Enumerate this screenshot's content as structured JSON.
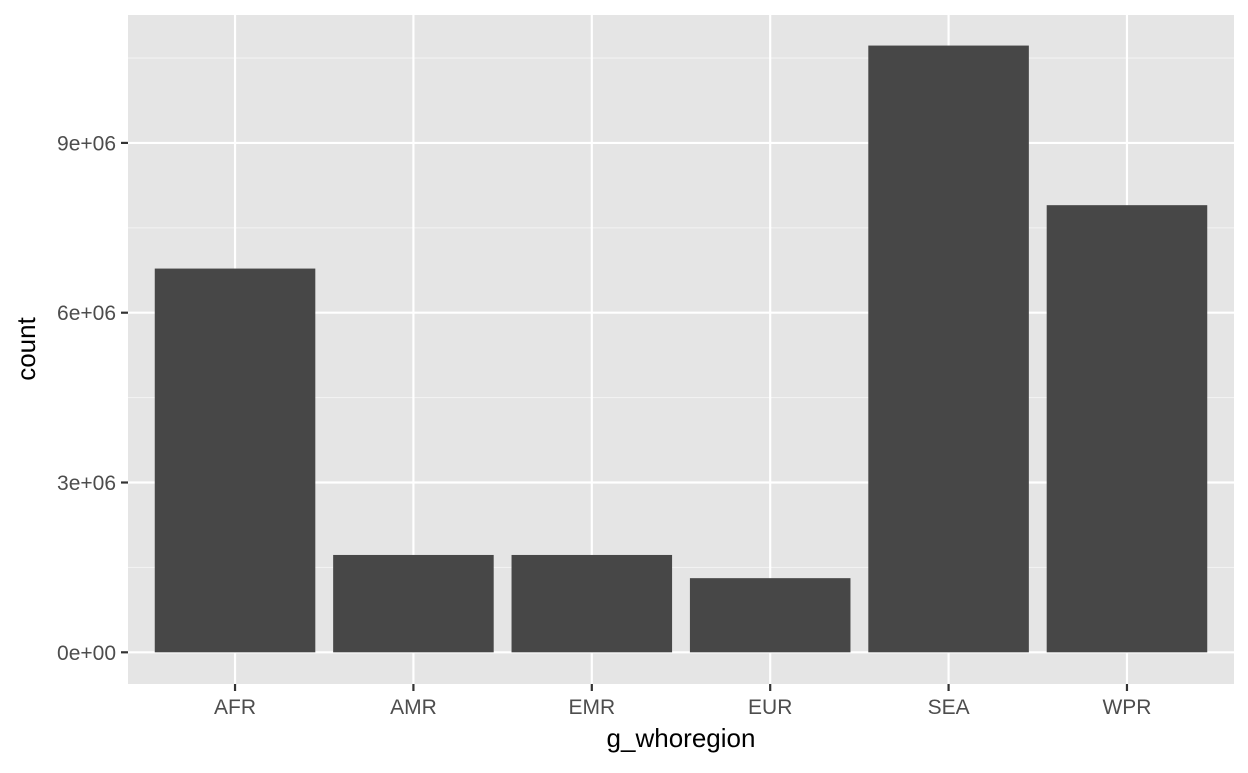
{
  "chart_data": {
    "type": "bar",
    "title": "",
    "xlabel": "g_whoregion",
    "ylabel": "count",
    "categories": [
      "AFR",
      "AMR",
      "EMR",
      "EUR",
      "SEA",
      "WPR"
    ],
    "values": [
      6780000,
      1720000,
      1720000,
      1310000,
      10720000,
      7900000
    ],
    "ylim": [
      -560000,
      11260000
    ],
    "yticks": [
      0,
      3000000,
      6000000,
      9000000
    ],
    "ytick_labels": [
      "0e+00",
      "3e+06",
      "6e+06",
      "9e+06"
    ],
    "grid": true,
    "legend": "none"
  },
  "colors": {
    "panel_background": "#e5e5e5",
    "grid_major": "#ffffff",
    "grid_minor": "#f2f2f2",
    "bar_fill": "#474747",
    "tick_color": "#333333",
    "tick_label": "#4d4d4d",
    "axis_title": "#000000"
  }
}
